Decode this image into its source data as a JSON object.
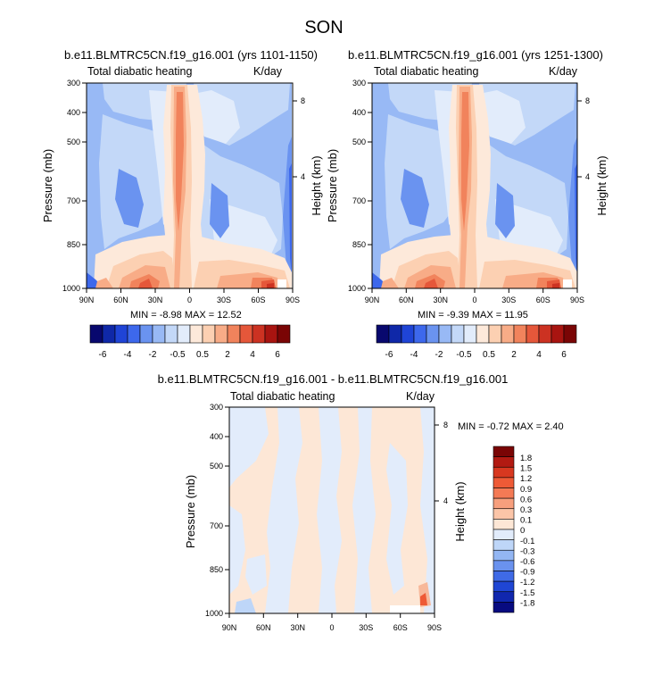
{
  "page_title": "SON",
  "colors": {
    "main_palette": [
      "#08086e",
      "#0f28a8",
      "#1f44d6",
      "#3d68ec",
      "#6a93f0",
      "#98b9f5",
      "#c3d8f8",
      "#e2ecfb",
      "#fde9da",
      "#fcd0b2",
      "#f8ac87",
      "#f1835c",
      "#e5573a",
      "#cc3222",
      "#a81410",
      "#7a0505"
    ],
    "diff_palette": [
      "#7a0505",
      "#b21a12",
      "#d83820",
      "#ee5a36",
      "#f47a55",
      "#f79f7d",
      "#fbc5a8",
      "#fde7d6",
      "#e2ecfb",
      "#bed6f8",
      "#93b6f3",
      "#6a92ee",
      "#3f6ae6",
      "#1f46d4",
      "#1027ae",
      "#080b80"
    ]
  },
  "chart_data": [
    {
      "type": "heatmap",
      "title": "b.e11.BLMTRC5CN.f19_g16.001 (yrs 1101-1150)",
      "subtitle_left": "Total diabatic heating",
      "subtitle_right": "K/day",
      "ylabel": "Pressure (mb)",
      "ylabel_right": "Height (km)",
      "x_ticks": [
        "90N",
        "60N",
        "30N",
        "0",
        "30S",
        "60S",
        "90S"
      ],
      "y_ticks": [
        "300",
        "400",
        "500",
        "700",
        "850",
        "1000"
      ],
      "y_ticks_right": [
        "8",
        "4"
      ],
      "min_max": "MIN = -8.98   MAX = 12.52",
      "colorbar_labels": [
        "-6",
        "-4",
        "-2",
        "-0.5",
        "0.5",
        "2",
        "4",
        "6"
      ]
    },
    {
      "type": "heatmap",
      "title": "b.e11.BLMTRC5CN.f19_g16.001 (yrs 1251-1300)",
      "subtitle_left": "Total diabatic heating",
      "subtitle_right": "K/day",
      "ylabel": "Pressure (mb)",
      "ylabel_right": "Height (km)",
      "x_ticks": [
        "90N",
        "60N",
        "30N",
        "0",
        "30S",
        "60S",
        "90S"
      ],
      "y_ticks": [
        "300",
        "400",
        "500",
        "700",
        "850",
        "1000"
      ],
      "y_ticks_right": [
        "8",
        "4"
      ],
      "min_max": "MIN = -9.39   MAX = 11.95",
      "colorbar_labels": [
        "-6",
        "-4",
        "-2",
        "-0.5",
        "0.5",
        "2",
        "4",
        "6"
      ]
    },
    {
      "type": "heatmap",
      "title": "b.e11.BLMTRC5CN.f19_g16.001 - b.e11.BLMTRC5CN.f19_g16.001",
      "subtitle_left": "Total diabatic heating",
      "subtitle_right": "K/day",
      "ylabel": "Pressure (mb)",
      "ylabel_right": "Height (km)",
      "x_ticks": [
        "90N",
        "60N",
        "30N",
        "0",
        "30S",
        "60S",
        "90S"
      ],
      "y_ticks": [
        "300",
        "400",
        "500",
        "700",
        "850",
        "1000"
      ],
      "y_ticks_right": [
        "8",
        "4"
      ],
      "min_max": "MIN = -0.72   MAX =  2.40",
      "colorbar_labels": [
        "1.8",
        "1.5",
        "1.2",
        "0.9",
        "0.6",
        "0.3",
        "0.1",
        "0",
        "-0.1",
        "-0.3",
        "-0.6",
        "-0.9",
        "-1.2",
        "-1.5",
        "-1.8"
      ]
    }
  ]
}
